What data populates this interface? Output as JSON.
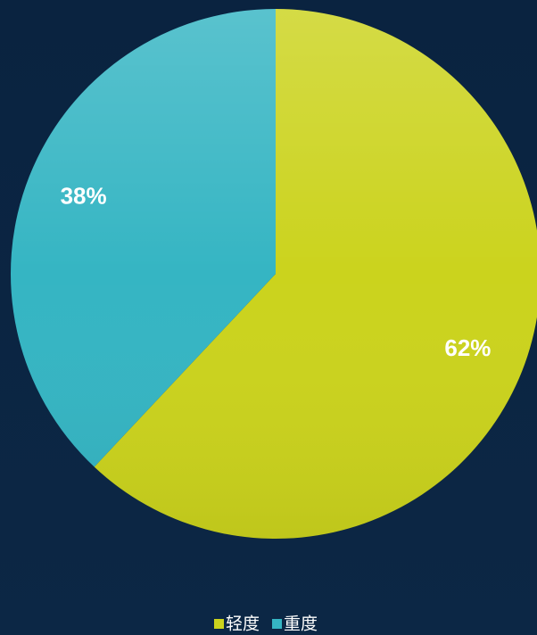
{
  "chart_data": {
    "type": "pie",
    "categories": [
      "轻度",
      "重度"
    ],
    "values": [
      62,
      38
    ],
    "value_labels": [
      "62%",
      "38%"
    ],
    "colors": [
      "#cbd31d",
      "#35b5c3"
    ],
    "legend": "bottom"
  }
}
